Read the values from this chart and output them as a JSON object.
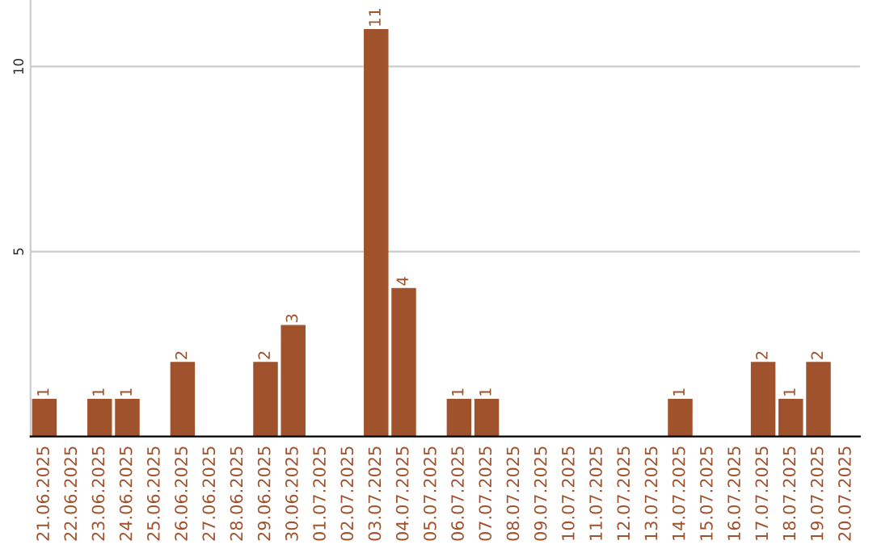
{
  "chart_data": {
    "type": "bar",
    "categories": [
      "21.06.2025",
      "22.06.2025",
      "23.06.2025",
      "24.06.2025",
      "25.06.2025",
      "26.06.2025",
      "27.06.2025",
      "28.06.2025",
      "29.06.2025",
      "30.06.2025",
      "01.07.2025",
      "02.07.2025",
      "03.07.2025",
      "04.07.2025",
      "05.07.2025",
      "06.07.2025",
      "07.07.2025",
      "08.07.2025",
      "09.07.2025",
      "10.07.2025",
      "11.07.2025",
      "12.07.2025",
      "13.07.2025",
      "14.07.2025",
      "15.07.2025",
      "16.07.2025",
      "17.07.2025",
      "18.07.2025",
      "19.07.2025",
      "20.07.2025"
    ],
    "values": [
      1,
      0,
      1,
      1,
      0,
      2,
      0,
      0,
      2,
      3,
      0,
      0,
      11,
      4,
      0,
      1,
      1,
      0,
      0,
      0,
      0,
      0,
      0,
      1,
      0,
      0,
      2,
      1,
      2,
      0
    ],
    "value_labels": [
      "1",
      null,
      "1",
      "1",
      null,
      "2",
      null,
      null,
      "2",
      "3",
      null,
      null,
      "11",
      "4",
      null,
      "1",
      "1",
      null,
      null,
      null,
      null,
      null,
      null,
      "1",
      null,
      null,
      "2",
      "1",
      "2",
      null
    ],
    "color": "#a0522d",
    "ylim": [
      0,
      11.8
    ],
    "yticks": [
      5,
      10
    ],
    "grid": "y"
  }
}
